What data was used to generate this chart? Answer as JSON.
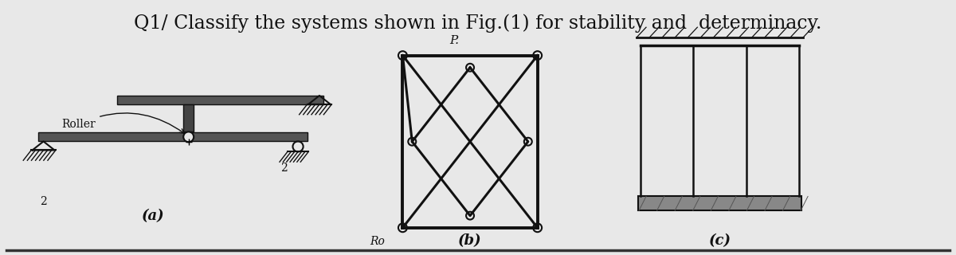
{
  "title": "Q1/ Classify the systems shown in Fig.(1) for stability and  determinacy.",
  "title_fontsize": 17,
  "background_color": "#e8e8e8",
  "text_color": "#111111",
  "fig_width": 12.0,
  "fig_height": 3.2,
  "label_a": "(a)",
  "label_b": "(b)",
  "label_c": "(c)",
  "roller_label": "Roller",
  "dark": "#111111",
  "beam_color": "#444444",
  "beam_fill": "#555555"
}
